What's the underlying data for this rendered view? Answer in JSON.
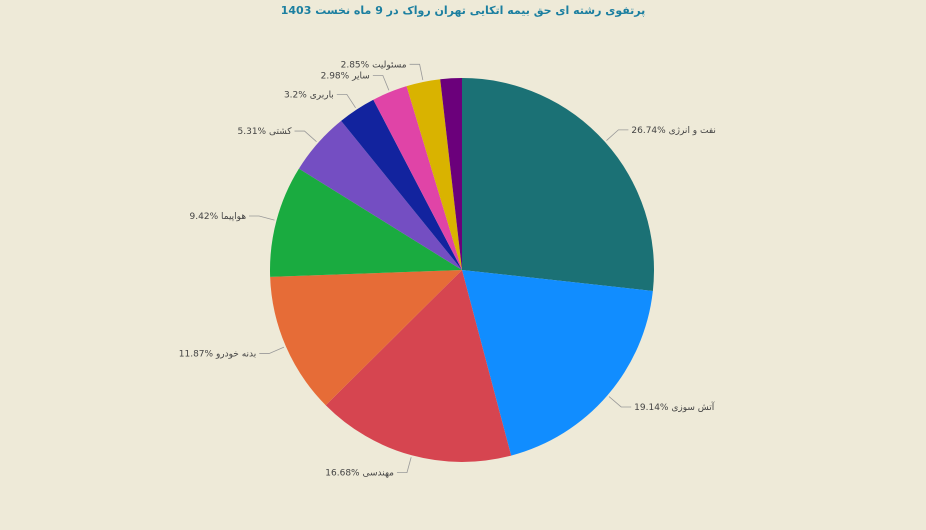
{
  "chart_data": {
    "type": "pie",
    "title": "پرتفوی رشته ای حق بیمه اتکایی تهران رواک در 9 ماه نخست 1403",
    "categories": [
      "نفت و انرژی",
      "آتش سوزی",
      "مهندسی",
      "بدنه خودرو",
      "هواپیما",
      "کشتی",
      "باربری",
      "سایر",
      "مسئولیت",
      null
    ],
    "values": [
      26.74,
      19.14,
      16.68,
      11.87,
      9.42,
      5.31,
      3.2,
      2.98,
      2.85,
      1.81
    ],
    "value_labels": [
      "26.74%",
      "19.14%",
      "16.68%",
      "11.87%",
      "9.42%",
      "5.31%",
      "3.2%",
      "2.98%",
      "2.85%",
      null
    ],
    "colors": [
      "#1b7175",
      "#118dff",
      "#d64550",
      "#e66c37",
      "#1aab40",
      "#744ec2",
      "#12239e",
      "#e044a7",
      "#d9b300",
      "#6b007b"
    ]
  }
}
